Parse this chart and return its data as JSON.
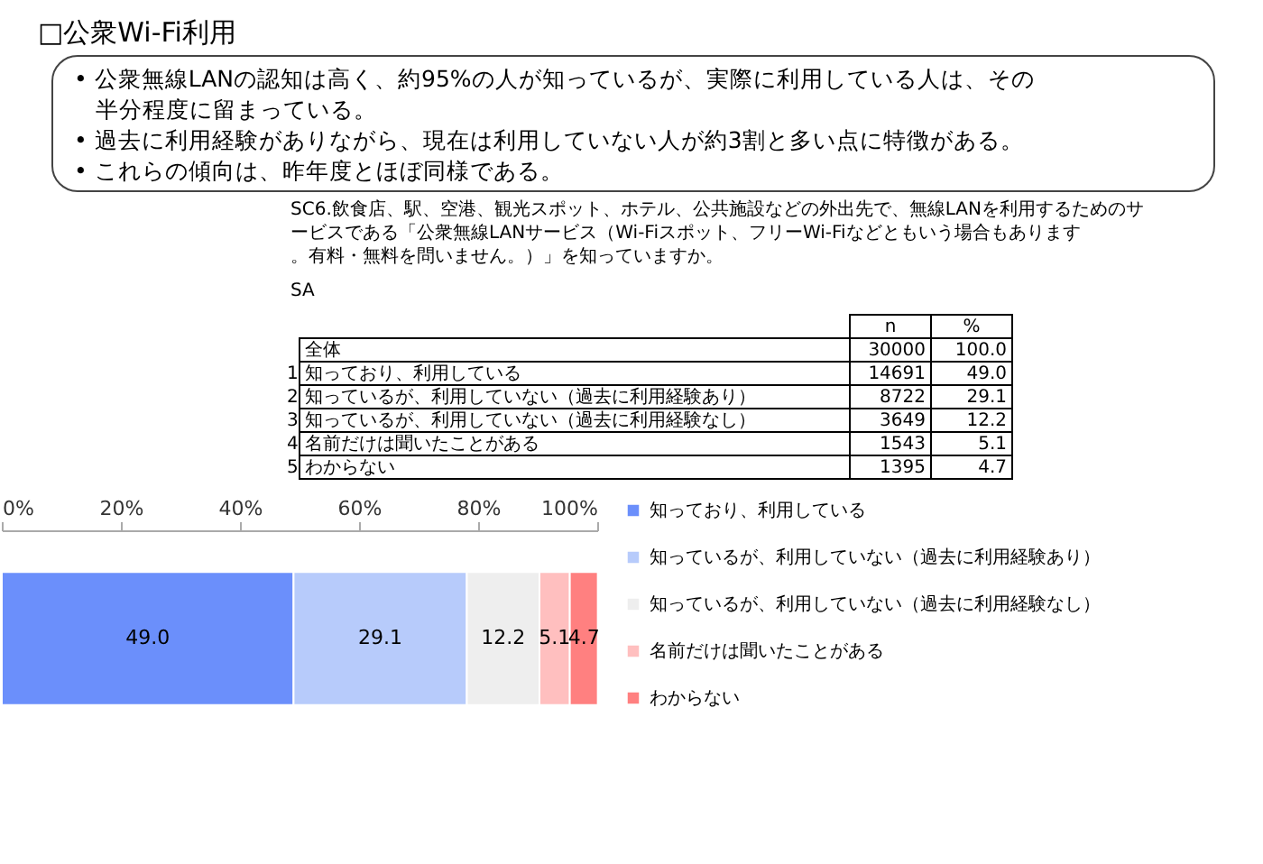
{
  "chart_data": {
    "type": "bar",
    "orientation": "horizontal",
    "stacked": true,
    "title": "□公衆Wi-Fi利用",
    "annotations": [
      "• 公衆無線LANの認知は高く、約95%の人が知っているが、実際に利用している人は、その半分程度に留まっている。",
      "• 過去に利用経験がありながら、現在は利用していない人が約3割と多い点に特徴がある。",
      "• これらの傾向は、昨年度とほぼ同様である。",
      "SC6.飲食店、駅、空港、観光スポット、ホテル、公共施設などの外出先で、無線LANを利用するためのサービスである「公衆無線LANサービス（Wi-Fiスポット、フリーWi-Fiなどともいう場合もあります。有料・無料を問いません。）」を知っていますか。",
      "SA",
      "n",
      "%",
      "全体",
      "30000",
      "100.0",
      "1",
      "知っており、利用している",
      "14691",
      "49.0",
      "2",
      "知っているが、利用していない（過去に利用経験あり）",
      "8722",
      "29.1",
      "3",
      "知っているが、利用していない（過去に利用経験なし）",
      "3649",
      "12.2",
      "4",
      "名前だけは聞いたことがある",
      "1543",
      "5.1",
      "5",
      "わからない",
      "1395",
      "4.7"
    ],
    "categories": [
      null
    ],
    "series": [
      {
        "name": "知っており、利用している",
        "color": "#6b8ffb",
        "values": [
          49.0
        ],
        "value_labels": [
          "49.0"
        ]
      },
      {
        "name": "知っているが、利用していない（過去に利用経験あり）",
        "color": "#b7cbfb",
        "values": [
          29.1
        ],
        "value_labels": [
          "29.1"
        ]
      },
      {
        "name": "知っているが、利用していない（過去に利用経験なし）",
        "color": "#eeeeee",
        "values": [
          12.2
        ],
        "value_labels": [
          "12.2"
        ]
      },
      {
        "name": "名前だけは聞いたことがある",
        "color": "#ffbfbf",
        "values": [
          5.1
        ],
        "value_labels": [
          "5.1"
        ]
      },
      {
        "name": "わからない",
        "color": "#ff8080",
        "values": [
          4.7
        ],
        "value_labels": [
          "4.7"
        ]
      }
    ],
    "xlim": [
      0,
      100
    ],
    "xticks": [
      {
        "value": 0,
        "label": "0%"
      },
      {
        "value": 20,
        "label": "20%"
      },
      {
        "value": 40,
        "label": "40%"
      },
      {
        "value": 60,
        "label": "60%"
      },
      {
        "value": 80,
        "label": "80%"
      },
      {
        "value": 100,
        "label": "100%"
      }
    ],
    "legend": "right",
    "grid": false
  }
}
